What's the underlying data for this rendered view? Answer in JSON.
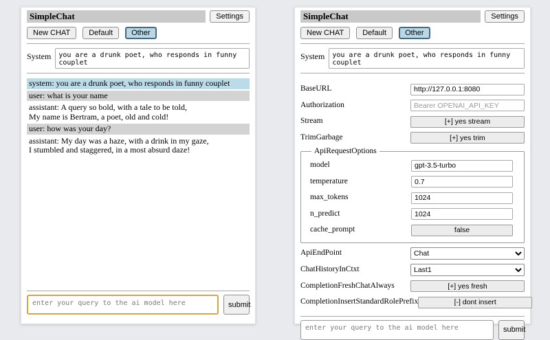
{
  "colors": {
    "page_bg": "#e9eaee",
    "titlebar_bg": "#c9c9c9",
    "active_session_bg": "#b9d7e6",
    "active_session_border": "#47697d",
    "system_msg_bg": "#bcdbe8",
    "user_msg_bg": "#d3d3d3",
    "query_highlight_border": "#d9a43c"
  },
  "header": {
    "title": "SimpleChat",
    "settings_label": "Settings",
    "sessions": [
      {
        "label": "New CHAT",
        "active": false
      },
      {
        "label": "Default",
        "active": false
      },
      {
        "label": "Other",
        "active": true
      }
    ],
    "system_label": "System",
    "system_prompt": "you are a drunk poet, who responds in funny couplet"
  },
  "chat": {
    "messages": [
      {
        "role": "system",
        "text": "system: you are a drunk poet, who responds in funny couplet"
      },
      {
        "role": "user",
        "text": "user: what is your name"
      },
      {
        "role": "assistant",
        "text": "assistant: A query so bold, with a tale to be told,\nMy name is Bertram, a poet, old and cold!"
      },
      {
        "role": "user",
        "text": "user: how was your day?"
      },
      {
        "role": "assistant",
        "text": "assistant: My day was a haze, with a drink in my gaze,\nI stumbled and staggered, in a most absurd daze!"
      }
    ]
  },
  "settings": {
    "base_url": {
      "label": "BaseURL",
      "value": "http://127.0.0.1:8080"
    },
    "authorization": {
      "label": "Authorization",
      "placeholder": "Bearer OPENAI_API_KEY"
    },
    "stream": {
      "label": "Stream",
      "button": "[+] yes stream"
    },
    "trim_garbage": {
      "label": "TrimGarbage",
      "button": "[+] yes trim"
    },
    "api_request_options": {
      "legend": "ApiRequestOptions",
      "model": {
        "label": "model",
        "value": "gpt-3.5-turbo"
      },
      "temperature": {
        "label": "temperature",
        "value": "0.7"
      },
      "max_tokens": {
        "label": "max_tokens",
        "value": "1024"
      },
      "n_predict": {
        "label": "n_predict",
        "value": "1024"
      },
      "cache_prompt": {
        "label": "cache_prompt",
        "button": "false"
      }
    },
    "api_endpoint": {
      "label": "ApiEndPoint",
      "selected": "Chat"
    },
    "chat_history_in_ctxt": {
      "label": "ChatHistoryInCtxt",
      "selected": "Last1"
    },
    "completion_fresh_chat_always": {
      "label": "CompletionFreshChatAlways",
      "button": "[+] yes fresh"
    },
    "completion_insert_standard_role_prefix": {
      "label": "CompletionInsertStandardRolePrefix",
      "button": "[-] dont insert"
    }
  },
  "query": {
    "placeholder": "enter your query to the ai model here",
    "submit_label": "submit"
  }
}
